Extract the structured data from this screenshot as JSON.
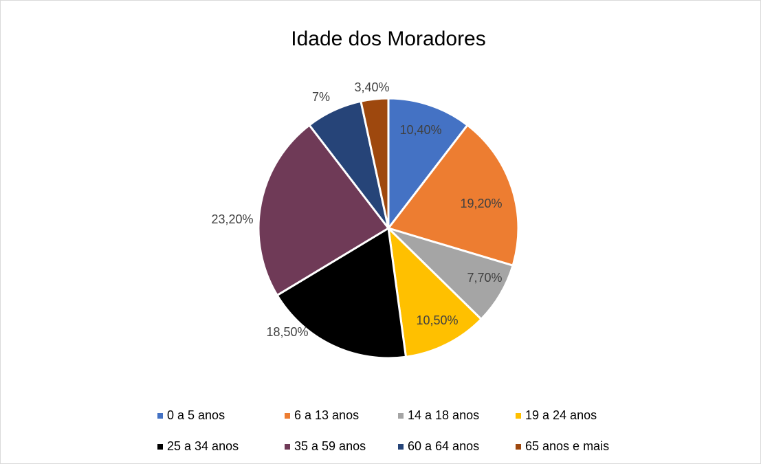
{
  "chart_data": {
    "type": "pie",
    "title": "Idade dos Moradores",
    "categories": [
      "0 a 5 anos",
      "6 a 13 anos",
      "14 a 18 anos",
      "19 a 24 anos",
      "25 a 34 anos",
      "35 a 59 anos",
      "60 a 64 anos",
      "65 anos e mais"
    ],
    "values": [
      10.4,
      19.2,
      7.7,
      10.5,
      18.5,
      23.2,
      7,
      3.4
    ],
    "value_labels": [
      "10,40%",
      "19,20%",
      "7,70%",
      "10,50%",
      "18,50%",
      "23,20%",
      "7%",
      "3,40%"
    ],
    "colors": [
      "#4472c4",
      "#ed7d31",
      "#a5a5a5",
      "#ffc000",
      "#000000",
      "#6f3a57",
      "#264478",
      "#9e480e"
    ],
    "legend": "bottom"
  }
}
